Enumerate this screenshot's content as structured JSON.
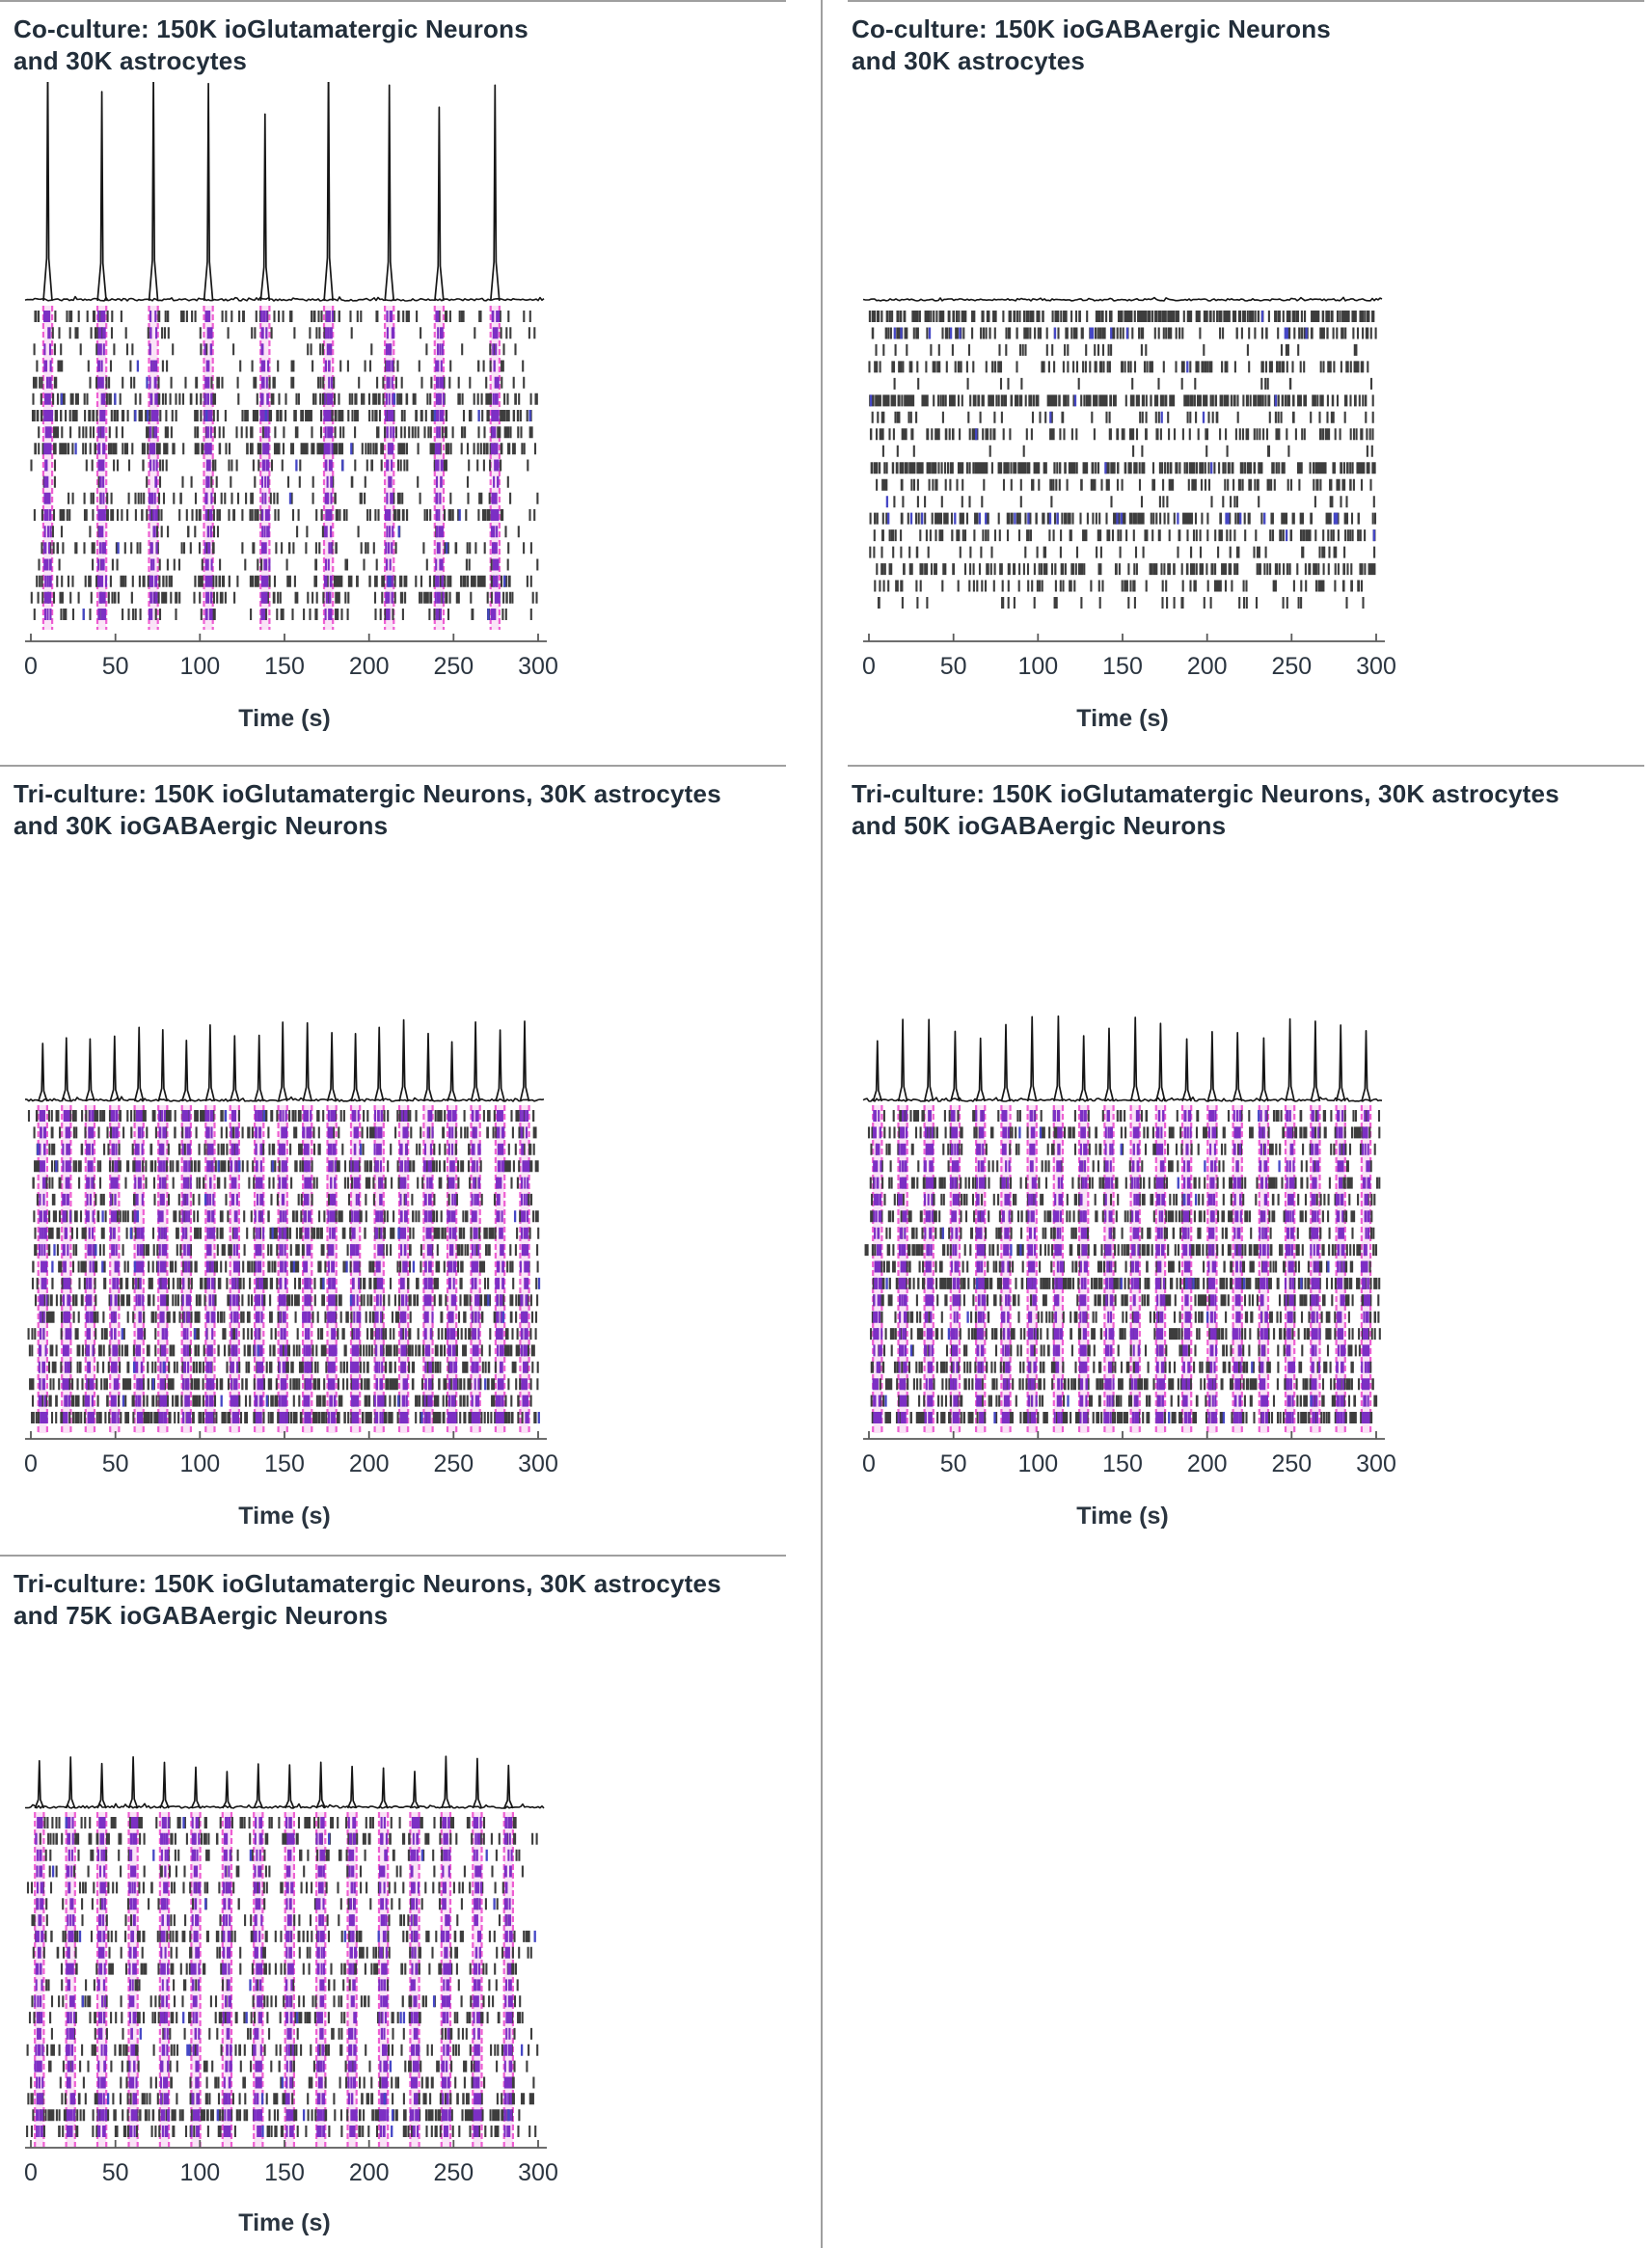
{
  "page": {
    "background": "#ffffff"
  },
  "colors": {
    "title_text": "#222e3a",
    "axis_text": "#2b3540",
    "axis_line": "#5a5a5a",
    "trace": "#161616",
    "spike_tick": "#3d3d3d",
    "spike_tick_blue": "#4547c6",
    "burst_band_fill": "#fae3f7",
    "burst_band_border": "#ee5ed2",
    "burst_tick": "#7c2fc4",
    "divider": "#9f9f9f"
  },
  "x_axis": {
    "label": "Time (s)",
    "ticks": [
      0,
      50,
      100,
      150,
      200,
      250,
      300
    ],
    "range_s": [
      0,
      300
    ]
  },
  "chart_data": [
    {
      "type": "raster",
      "position": "top-left",
      "title_line1": "Co-culture: 150K ioGlutamatergic Neurons",
      "title_line2": "and 30K astrocytes",
      "bursting": true,
      "n_network_bursts": 9,
      "burst_times_s": [
        10,
        42,
        72.5,
        105,
        138.5,
        176,
        212,
        241.5,
        274.5
      ],
      "n_raster_rows": 19,
      "row_densities": [
        0.45,
        0.2,
        0.14,
        0.22,
        0.32,
        0.6,
        0.97,
        0.5,
        0.92,
        0.28,
        0.13,
        0.3,
        0.6,
        0.12,
        0.38,
        0.18,
        0.75,
        0.55,
        0.3
      ],
      "burst_fraction": 0.5,
      "trace_description": "population activity with tall sharp peaks at each network burst",
      "seed": 11
    },
    {
      "type": "raster",
      "position": "top-right",
      "title_line1": "Co-culture: 150K ioGABAergic Neurons",
      "title_line2": "and 30K astrocytes",
      "bursting": false,
      "n_network_bursts": 0,
      "burst_times_s": [],
      "n_raster_rows": 18,
      "row_densities": [
        0.95,
        0.55,
        0.12,
        0.45,
        0.06,
        0.96,
        0.2,
        0.42,
        0.05,
        0.93,
        0.35,
        0.1,
        0.6,
        0.4,
        0.18,
        0.55,
        0.3,
        0.12
      ],
      "blue_rows": [
        1,
        12
      ],
      "burst_fraction": 0,
      "trace_description": "flat noisy population activity, no network bursts",
      "seed": 23
    },
    {
      "type": "raster",
      "position": "middle-left",
      "title_line1": "Tri-culture: 150K ioGlutamatergic Neurons, 30K astrocytes",
      "title_line2": "and 30K ioGABAergic Neurons",
      "bursting": true,
      "n_network_bursts": 21,
      "burst_times_s": [
        7,
        21,
        35,
        49.5,
        64,
        78,
        92,
        106,
        120.5,
        135,
        149,
        163.5,
        178,
        192,
        206,
        220.5,
        235,
        249,
        263,
        277.5,
        292
      ],
      "n_raster_rows": 19,
      "row_densities": [
        0.55,
        0.35,
        0.3,
        0.55,
        0.3,
        0.2,
        0.45,
        0.5,
        0.35,
        0.5,
        0.4,
        0.55,
        0.45,
        0.35,
        0.55,
        0.4,
        0.65,
        0.55,
        0.9
      ],
      "burst_fraction": 0.55,
      "trace_description": "regular medium peaks at each network burst",
      "seed": 37
    },
    {
      "type": "raster",
      "position": "middle-right",
      "title_line1": "Tri-culture: 150K ioGlutamatergic Neurons, 30K astrocytes",
      "title_line2": "and 50K ioGABAergic Neurons",
      "bursting": true,
      "n_network_bursts": 20,
      "burst_times_s": [
        5,
        20,
        35.5,
        51,
        66,
        81,
        96.5,
        112,
        127,
        142,
        157.5,
        172.5,
        188,
        203,
        218,
        233.5,
        249,
        264,
        279,
        294
      ],
      "n_raster_rows": 19,
      "row_densities": [
        0.3,
        0.5,
        0.25,
        0.15,
        0.5,
        0.35,
        0.45,
        0.3,
        0.55,
        0.4,
        0.85,
        0.5,
        0.35,
        0.6,
        0.3,
        0.45,
        0.55,
        0.35,
        0.8
      ],
      "burst_fraction": 0.55,
      "trace_description": "regular medium peaks at each network burst",
      "seed": 53
    },
    {
      "type": "raster",
      "position": "bottom-left",
      "title_line1": "Tri-culture: 150K ioGlutamatergic Neurons, 30K astrocytes",
      "title_line2": "and 75K ioGABAergic Neurons",
      "bursting": true,
      "n_network_bursts": 16,
      "burst_times_s": [
        5,
        23.5,
        42,
        60.5,
        79,
        97.5,
        116,
        134.5,
        153,
        171.5,
        190,
        208.5,
        227,
        245.5,
        264,
        282.5
      ],
      "n_raster_rows": 20,
      "row_densities": [
        0.35,
        0.4,
        0.25,
        0.12,
        0.3,
        0.2,
        0.15,
        0.45,
        0.25,
        0.35,
        0.15,
        0.3,
        0.4,
        0.2,
        0.35,
        0.25,
        0.3,
        0.45,
        0.85,
        0.4
      ],
      "burst_fraction": 0.6,
      "trace_description": "small regular peaks at each network burst",
      "seed": 71
    }
  ]
}
